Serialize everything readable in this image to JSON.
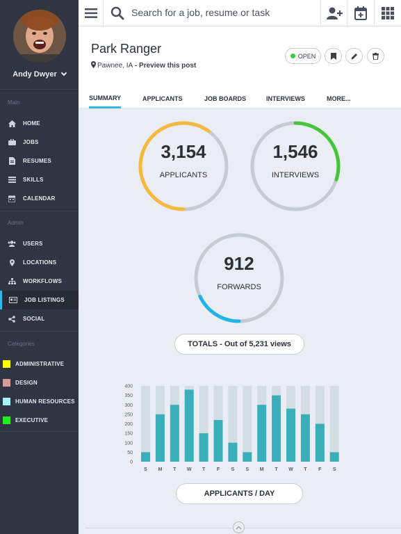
{
  "user": {
    "name": "Andy Dwyer"
  },
  "sidebar": {
    "sections": {
      "main": "Main",
      "admin": "Admin",
      "categories": "Categories"
    },
    "main_items": [
      {
        "label": "HOME",
        "icon": "home-icon"
      },
      {
        "label": "JOBS",
        "icon": "briefcase-icon"
      },
      {
        "label": "RESUMES",
        "icon": "document-icon"
      },
      {
        "label": "SKILLS",
        "icon": "list-icon"
      },
      {
        "label": "CALENDAR",
        "icon": "calendar-icon"
      }
    ],
    "admin_items": [
      {
        "label": "USERS",
        "icon": "users-icon"
      },
      {
        "label": "LOCATIONS",
        "icon": "map-pin-icon"
      },
      {
        "label": "WORKFLOWS",
        "icon": "sitemap-icon"
      },
      {
        "label": "JOB LISTINGS",
        "icon": "id-card-icon",
        "active": true
      },
      {
        "label": "SOCIAL",
        "icon": "share-icon"
      }
    ],
    "categories": [
      {
        "label": "ADMINISTRATIVE",
        "color": "#ffff00"
      },
      {
        "label": "DESIGN",
        "color": "#d69a9a"
      },
      {
        "label": "HUMAN RESOURCES",
        "color": "#a6f2ff"
      },
      {
        "label": "EXECUTIVE",
        "color": "#22ee22"
      }
    ]
  },
  "search": {
    "placeholder": "Search for a job, resume or task"
  },
  "job": {
    "title": "Park Ranger",
    "location": "Pawnee, IA",
    "separator": " - ",
    "preview_label": "Preview this post",
    "status": "OPEN",
    "status_color": "#3ec847"
  },
  "tabs": [
    {
      "label": "SUMMARY",
      "active": true
    },
    {
      "label": "APPLICANTS"
    },
    {
      "label": "JOB BOARDS"
    },
    {
      "label": "INTERVIEWS"
    },
    {
      "label": "MORE..."
    }
  ],
  "stats": {
    "applicants": {
      "value": "3,154",
      "label": "APPLICANTS",
      "fraction": 0.6,
      "color": "#f4b93e"
    },
    "interviews": {
      "value": "1,546",
      "label": "INTERVIEWS",
      "fraction": 0.3,
      "color": "#46c43c"
    },
    "forwards": {
      "value": "912",
      "label": "FORWARDS",
      "fraction": 0.18,
      "color": "#22b4e6"
    }
  },
  "totals_label": "TOTALS - Out of 5,231 views",
  "chart_button_label": "APPLICANTS / DAY",
  "chart_data": {
    "type": "bar",
    "categories": [
      "S",
      "M",
      "T",
      "W",
      "T",
      "F",
      "S",
      "S",
      "M",
      "T",
      "W",
      "T",
      "F",
      "S"
    ],
    "values": [
      50,
      250,
      300,
      380,
      150,
      220,
      100,
      50,
      300,
      350,
      280,
      250,
      200,
      50
    ],
    "max_values": [
      400,
      400,
      400,
      400,
      400,
      400,
      400,
      400,
      400,
      400,
      400,
      400,
      400,
      400
    ],
    "yticks": [
      0,
      50,
      100,
      150,
      200,
      250,
      300,
      350,
      400
    ],
    "ylim": [
      0,
      400
    ],
    "bar_color": "#3aafb9",
    "track_color": "#d3dde4"
  }
}
